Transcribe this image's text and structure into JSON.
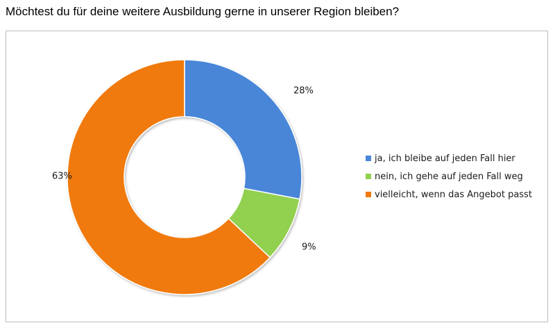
{
  "question": "Möchtest du für deine weitere Ausbildung gerne in unserer Region bleiben?",
  "chart_data": {
    "type": "pie",
    "style": "donut",
    "title": "Möchtest du für deine weitere Ausbildung gerne in unserer Region bleiben?",
    "legend_position": "right",
    "slices": [
      {
        "label": "ja, ich bleibe auf jeden Fall hier",
        "value": 28,
        "display": "28%",
        "color": "#4A86D8"
      },
      {
        "label": "nein, ich gehe auf jeden Fall weg",
        "value": 9,
        "display": "9%",
        "color": "#92D050"
      },
      {
        "label": "vielleicht, wenn das Angebot passt",
        "value": 63,
        "display": "63%",
        "color": "#F07A10"
      }
    ]
  }
}
